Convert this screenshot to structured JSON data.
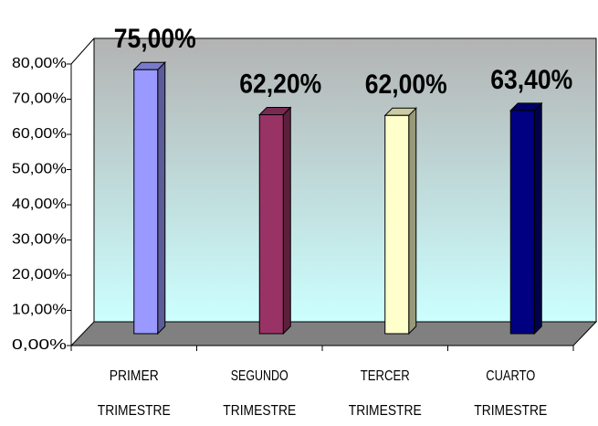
{
  "chart_data": {
    "type": "bar3d",
    "categories": [
      [
        "PRIMER",
        "TRIMESTRE"
      ],
      [
        "SEGUNDO",
        "TRIMESTRE"
      ],
      [
        "TERCER",
        "TRIMESTRE"
      ],
      [
        "CUARTO",
        "TRIMESTRE"
      ]
    ],
    "values": [
      75,
      62.2,
      62,
      63.4
    ],
    "value_labels": [
      "75,00%",
      "62,20%",
      "62,00%",
      "63,40%"
    ],
    "colors": [
      "#9999ff",
      "#993366",
      "#ffffcc",
      "#000080"
    ],
    "ylim": [
      0,
      80
    ],
    "yticks": [
      {
        "value": 0,
        "label": "0,00%"
      },
      {
        "value": 10,
        "label": "10,00%"
      },
      {
        "value": 20,
        "label": "20,00%"
      },
      {
        "value": 30,
        "label": "30,00%"
      },
      {
        "value": 40,
        "label": "40,00%"
      },
      {
        "value": 50,
        "label": "50,00%"
      },
      {
        "value": 60,
        "label": "60,00%"
      },
      {
        "value": 70,
        "label": "70,00%"
      },
      {
        "value": 80,
        "label": "80,00%"
      }
    ]
  }
}
